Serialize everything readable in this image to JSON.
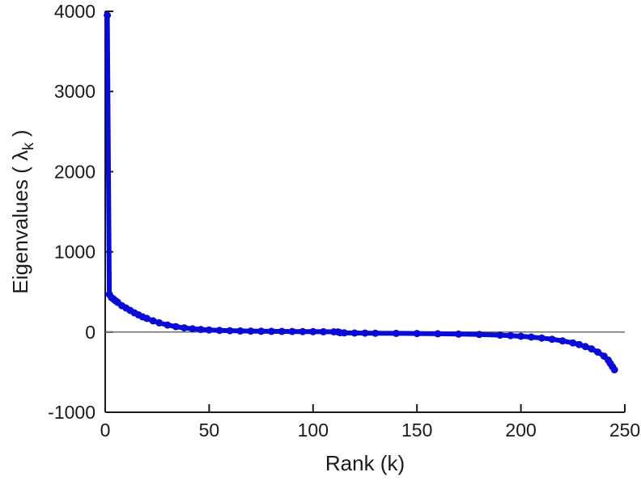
{
  "chart_data": {
    "type": "line",
    "title": "",
    "xlabel": "Rank (k)",
    "ylabel_parts": {
      "pre": "Eigenvalues ( ",
      "symbol": "λ",
      "subscript": "k",
      "post": " )"
    },
    "xlim": [
      0,
      250
    ],
    "ylim": [
      -1000,
      4000
    ],
    "x_ticks": [
      0,
      50,
      100,
      150,
      200,
      250
    ],
    "y_ticks": [
      -1000,
      0,
      1000,
      2000,
      3000,
      4000
    ],
    "grid": false,
    "legend": "none",
    "reference_line_y": 0,
    "colors": {
      "series": "#0b0bd6",
      "axis": "#1a1a1a",
      "reference_line": "#6e6e6e",
      "background": "#ffffff"
    },
    "series": [
      {
        "name": "eigenvalues",
        "marker": "dot",
        "points": [
          [
            1,
            3950
          ],
          [
            2,
            470
          ],
          [
            3,
            430
          ],
          [
            4,
            410
          ],
          [
            5,
            390
          ],
          [
            6,
            370
          ],
          [
            8,
            330
          ],
          [
            10,
            300
          ],
          [
            12,
            270
          ],
          [
            14,
            240
          ],
          [
            16,
            215
          ],
          [
            18,
            190
          ],
          [
            20,
            170
          ],
          [
            23,
            140
          ],
          [
            26,
            115
          ],
          [
            30,
            88
          ],
          [
            34,
            68
          ],
          [
            38,
            52
          ],
          [
            42,
            40
          ],
          [
            46,
            32
          ],
          [
            50,
            26
          ],
          [
            55,
            21
          ],
          [
            60,
            17
          ],
          [
            65,
            14
          ],
          [
            70,
            12
          ],
          [
            75,
            10
          ],
          [
            80,
            9
          ],
          [
            85,
            8
          ],
          [
            90,
            7
          ],
          [
            95,
            6
          ],
          [
            100,
            5
          ],
          [
            105,
            4
          ],
          [
            110,
            3
          ],
          [
            112,
            2
          ],
          [
            113,
            -8
          ],
          [
            115,
            -10
          ],
          [
            120,
            -12
          ],
          [
            125,
            -13
          ],
          [
            130,
            -14
          ],
          [
            140,
            -16
          ],
          [
            150,
            -18
          ],
          [
            160,
            -21
          ],
          [
            170,
            -25
          ],
          [
            180,
            -30
          ],
          [
            190,
            -38
          ],
          [
            195,
            -44
          ],
          [
            200,
            -52
          ],
          [
            205,
            -62
          ],
          [
            210,
            -75
          ],
          [
            215,
            -90
          ],
          [
            220,
            -110
          ],
          [
            225,
            -135
          ],
          [
            228,
            -155
          ],
          [
            231,
            -180
          ],
          [
            234,
            -210
          ],
          [
            237,
            -250
          ],
          [
            240,
            -300
          ],
          [
            242,
            -350
          ],
          [
            243,
            -390
          ],
          [
            244,
            -430
          ],
          [
            245,
            -470
          ]
        ]
      }
    ]
  }
}
